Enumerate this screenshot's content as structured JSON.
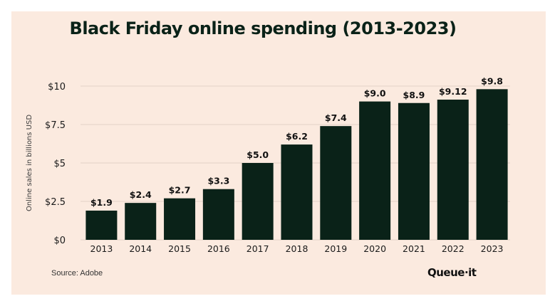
{
  "chart_data": {
    "type": "bar",
    "title": "Black Friday online spending (2013-2023)",
    "xlabel": "",
    "ylabel": "Online sales in billions USD",
    "categories": [
      "2013",
      "2014",
      "2015",
      "2016",
      "2017",
      "2018",
      "2019",
      "2020",
      "2021",
      "2022",
      "2023"
    ],
    "values": [
      1.9,
      2.4,
      2.7,
      3.3,
      5.0,
      6.2,
      7.4,
      9.0,
      8.9,
      9.12,
      9.8
    ],
    "data_labels": [
      "$1.9",
      "$2.4",
      "$2.7",
      "$3.3",
      "$5.0",
      "$6.2",
      "$7.4",
      "$9.0",
      "$8.9",
      "$9.12",
      "$9.8"
    ],
    "ylim": [
      0,
      10
    ],
    "yticks": [
      0,
      2.5,
      5,
      7.5,
      10
    ],
    "ytick_labels": [
      "$0",
      "$2.5",
      "$5",
      "$7.5",
      "$10"
    ],
    "grid": true,
    "legend": "none",
    "bar_color": "#0a2218",
    "background_color": "#fbeadf",
    "grid_color": "#e8d7cc"
  },
  "footer": {
    "source": "Source: Adobe",
    "brand": "Queue·it"
  }
}
